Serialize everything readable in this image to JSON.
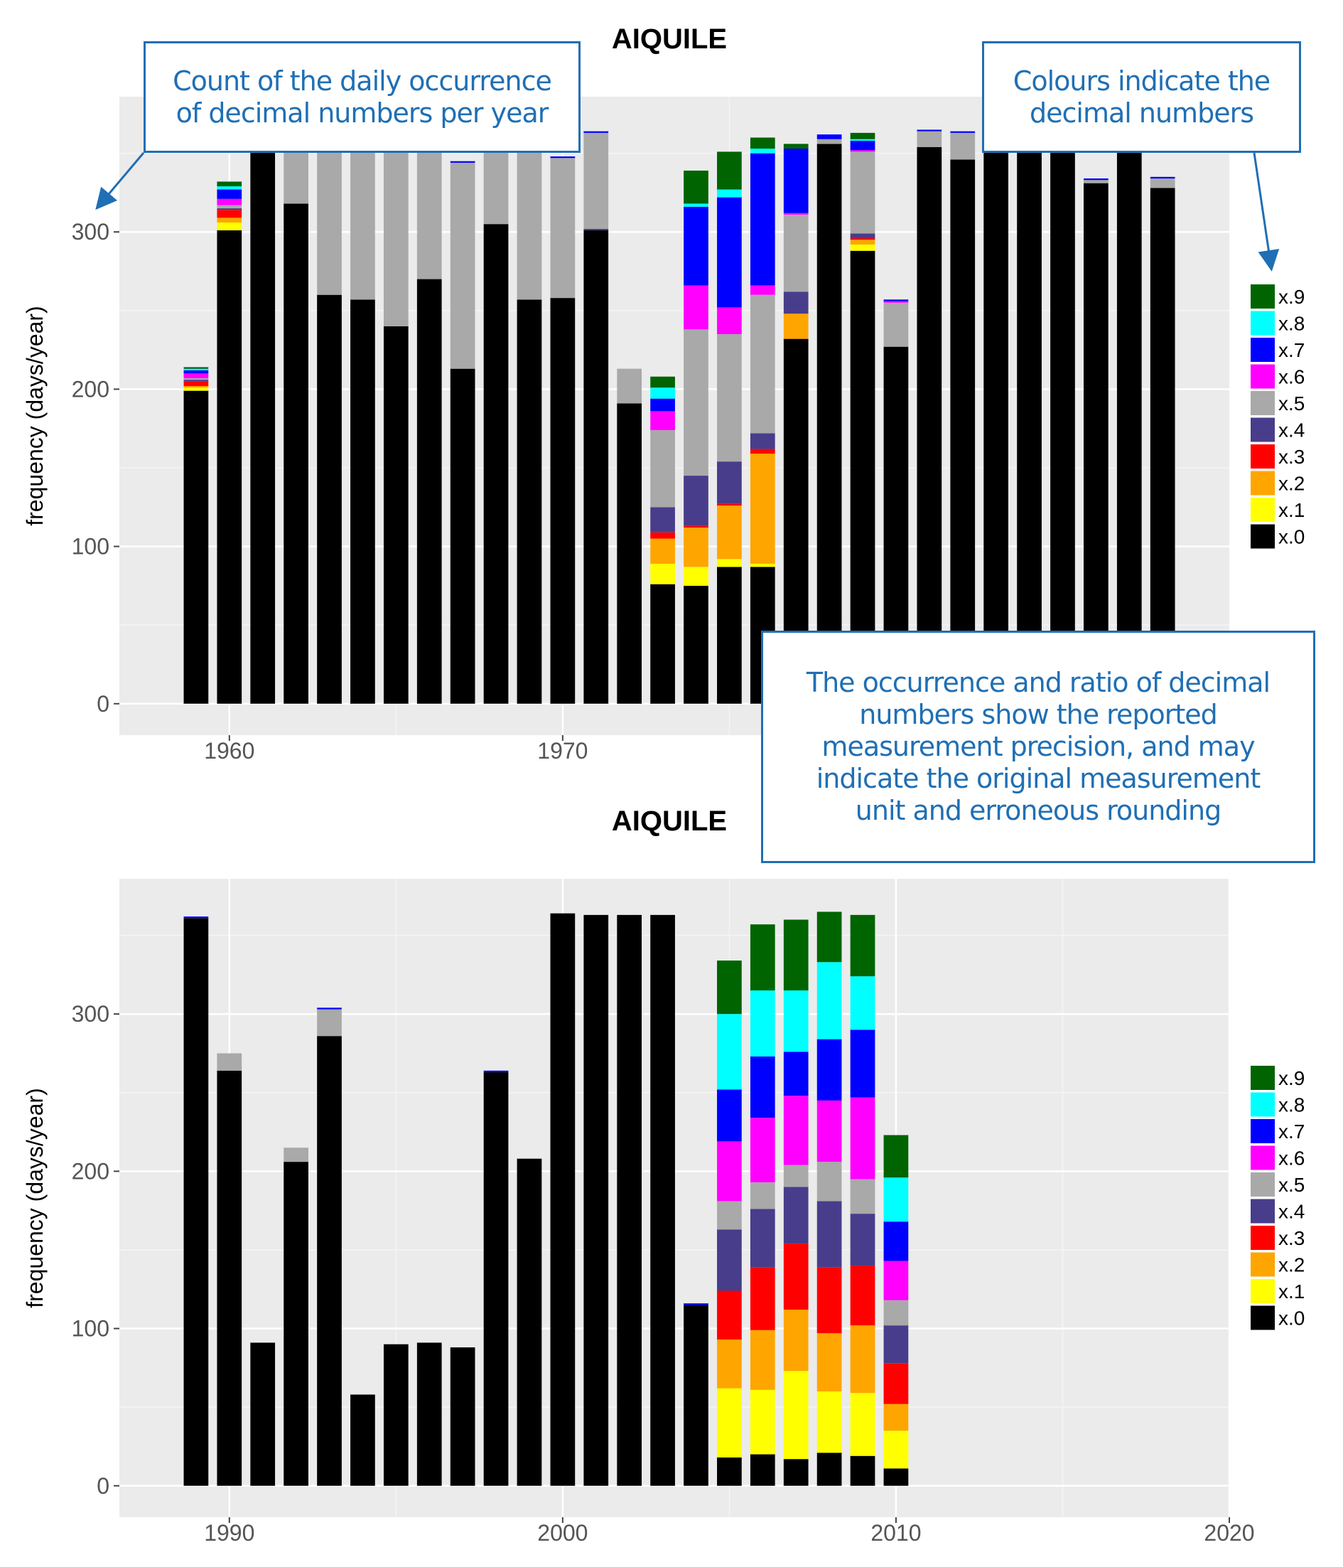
{
  "colors": {
    "x.0": "#000000",
    "x.1": "#ffff00",
    "x.2": "#ffa500",
    "x.3": "#ff0000",
    "x.4": "#483d8b",
    "x.5": "#a9a9a9",
    "x.6": "#ff00ff",
    "x.7": "#0000ff",
    "x.8": "#00ffff",
    "x.9": "#006400",
    "panel": "#ebebeb",
    "grid_major": "#ffffff",
    "callout": "#1f6fb4"
  },
  "callouts": {
    "count": "Count of the daily occurrence\nof decimal numbers per year",
    "colours": "Colours indicate the\ndecimal numbers",
    "precision": "The occurrence and ratio of decimal\nnumbers show the reported\nmeasurement precision, and may\nindicate the original measurement\nunit and erroneous rounding"
  },
  "chart_data": [
    {
      "type": "bar",
      "stacked": true,
      "title": "AIQUILE",
      "xlabel": "",
      "ylabel": "frequency (days/year)",
      "xlim": [
        1956.7,
        1990
      ],
      "ylim": [
        -20,
        386
      ],
      "xticks": [
        "1960",
        "1970"
      ],
      "yticks": [
        "0",
        "100",
        "200",
        "300"
      ],
      "legend": [
        "x.9",
        "x.8",
        "x.7",
        "x.6",
        "x.5",
        "x.4",
        "x.3",
        "x.2",
        "x.1",
        "x.0"
      ],
      "legend_position": "right",
      "grid": true,
      "series_order": [
        "x.0",
        "x.1",
        "x.2",
        "x.3",
        "x.4",
        "x.5",
        "x.6",
        "x.7",
        "x.8",
        "x.9"
      ],
      "bars": [
        {
          "year": 1959,
          "x.0": 199,
          "x.1": 2,
          "x.2": 1,
          "x.3": 3,
          "x.4": 1,
          "x.5": 1,
          "x.6": 3,
          "x.7": 2,
          "x.8": 1,
          "x.9": 1
        },
        {
          "year": 1960,
          "x.0": 301,
          "x.1": 5,
          "x.2": 3,
          "x.3": 5,
          "x.4": 1,
          "x.5": 2,
          "x.6": 4,
          "x.7": 6,
          "x.8": 2,
          "x.9": 3
        },
        {
          "year": 1961,
          "x.0": 365
        },
        {
          "year": 1962,
          "x.0": 318,
          "x.5": 47
        },
        {
          "year": 1963,
          "x.0": 260,
          "x.5": 105
        },
        {
          "year": 1964,
          "x.0": 257,
          "x.5": 108
        },
        {
          "year": 1965,
          "x.0": 240,
          "x.5": 125
        },
        {
          "year": 1966,
          "x.0": 270,
          "x.5": 95
        },
        {
          "year": 1967,
          "x.0": 213,
          "x.5": 131,
          "x.7": 1
        },
        {
          "year": 1968,
          "x.0": 305,
          "x.5": 60
        },
        {
          "year": 1969,
          "x.0": 257,
          "x.5": 108
        },
        {
          "year": 1970,
          "x.0": 258,
          "x.5": 89,
          "x.7": 1
        },
        {
          "year": 1971,
          "x.0": 301,
          "x.4": 1,
          "x.5": 61,
          "x.7": 1
        },
        {
          "year": 1972,
          "x.0": 191,
          "x.5": 22
        },
        {
          "year": 1973,
          "x.0": 76,
          "x.1": 13,
          "x.2": 16,
          "x.3": 4,
          "x.4": 16,
          "x.5": 49,
          "x.6": 12,
          "x.7": 8,
          "x.8": 7,
          "x.9": 7
        },
        {
          "year": 1974,
          "x.0": 75,
          "x.1": 12,
          "x.2": 25,
          "x.3": 1,
          "x.4": 32,
          "x.5": 93,
          "x.6": 28,
          "x.7": 50,
          "x.8": 2,
          "x.9": 21
        },
        {
          "year": 1975,
          "x.0": 87,
          "x.1": 5,
          "x.2": 34,
          "x.3": 1,
          "x.4": 27,
          "x.5": 81,
          "x.6": 17,
          "x.7": 70,
          "x.8": 5,
          "x.9": 24
        },
        {
          "year": 1976,
          "x.0": 87,
          "x.1": 2,
          "x.2": 70,
          "x.3": 3,
          "x.4": 10,
          "x.5": 88,
          "x.6": 6,
          "x.7": 84,
          "x.8": 3,
          "x.9": 7
        },
        {
          "year": 1977,
          "x.0": 232,
          "x.2": 16,
          "x.4": 14,
          "x.5": 49,
          "x.6": 1,
          "x.7": 41,
          "x.9": 3
        },
        {
          "year": 1978,
          "x.0": 356,
          "x.5": 3,
          "x.7": 3
        },
        {
          "year": 1979,
          "x.0": 288,
          "x.1": 4,
          "x.2": 3,
          "x.3": 1,
          "x.4": 3,
          "x.5": 52,
          "x.6": 1,
          "x.7": 6,
          "x.8": 1,
          "x.9": 4
        },
        {
          "year": 1980,
          "x.0": 227,
          "x.5": 28,
          "x.6": 1,
          "x.7": 1
        },
        {
          "year": 1981,
          "x.0": 354,
          "x.5": 10,
          "x.7": 1
        },
        {
          "year": 1982,
          "x.0": 346,
          "x.5": 17,
          "x.7": 1
        },
        {
          "year": 1983,
          "x.0": 365
        },
        {
          "year": 1984,
          "x.0": 364
        },
        {
          "year": 1985,
          "x.0": 365
        },
        {
          "year": 1986,
          "x.0": 331,
          "x.5": 2,
          "x.7": 1
        },
        {
          "year": 1987,
          "x.0": 365
        },
        {
          "year": 1988,
          "x.0": 328,
          "x.5": 6,
          "x.7": 1
        }
      ]
    },
    {
      "type": "bar",
      "stacked": true,
      "title": "AIQUILE",
      "xlabel": "",
      "ylabel": "frequency (days/year)",
      "xlim": [
        1986.7,
        2020.0
      ],
      "ylim": [
        -20,
        386
      ],
      "xticks": [
        "1990",
        "2000",
        "2010",
        "2020"
      ],
      "yticks": [
        "0",
        "100",
        "200",
        "300"
      ],
      "legend": [
        "x.9",
        "x.8",
        "x.7",
        "x.6",
        "x.5",
        "x.4",
        "x.3",
        "x.2",
        "x.1",
        "x.0"
      ],
      "legend_position": "right",
      "grid": true,
      "series_order": [
        "x.0",
        "x.1",
        "x.2",
        "x.3",
        "x.4",
        "x.5",
        "x.6",
        "x.7",
        "x.8",
        "x.9"
      ],
      "bars": [
        {
          "year": 1989,
          "x.0": 361,
          "x.7": 1
        },
        {
          "year": 1990,
          "x.0": 264,
          "x.5": 11
        },
        {
          "year": 1991,
          "x.0": 91
        },
        {
          "year": 1992,
          "x.0": 206,
          "x.5": 9
        },
        {
          "year": 1993,
          "x.0": 286,
          "x.5": 17,
          "x.7": 1
        },
        {
          "year": 1994,
          "x.0": 58
        },
        {
          "year": 1995,
          "x.0": 90
        },
        {
          "year": 1996,
          "x.0": 91
        },
        {
          "year": 1997,
          "x.0": 88
        },
        {
          "year": 1998,
          "x.0": 263,
          "x.7": 1
        },
        {
          "year": 1999,
          "x.0": 208
        },
        {
          "year": 2000,
          "x.0": 364
        },
        {
          "year": 2001,
          "x.0": 363
        },
        {
          "year": 2002,
          "x.0": 363
        },
        {
          "year": 2003,
          "x.0": 363
        },
        {
          "year": 2004,
          "x.0": 115,
          "x.7": 1
        },
        {
          "year": 2005,
          "x.0": 18,
          "x.1": 44,
          "x.2": 31,
          "x.3": 31,
          "x.4": 39,
          "x.5": 18,
          "x.6": 38,
          "x.7": 33,
          "x.8": 48,
          "x.9": 34
        },
        {
          "year": 2006,
          "x.0": 20,
          "x.1": 41,
          "x.2": 38,
          "x.3": 40,
          "x.4": 37,
          "x.5": 17,
          "x.6": 41,
          "x.7": 39,
          "x.8": 42,
          "x.9": 42
        },
        {
          "year": 2007,
          "x.0": 17,
          "x.1": 56,
          "x.2": 39,
          "x.3": 42,
          "x.4": 36,
          "x.5": 14,
          "x.6": 44,
          "x.7": 28,
          "x.8": 39,
          "x.9": 45
        },
        {
          "year": 2008,
          "x.0": 21,
          "x.1": 39,
          "x.2": 37,
          "x.3": 42,
          "x.4": 42,
          "x.5": 25,
          "x.6": 39,
          "x.7": 39,
          "x.8": 49,
          "x.9": 32
        },
        {
          "year": 2009,
          "x.0": 19,
          "x.1": 40,
          "x.2": 43,
          "x.3": 38,
          "x.4": 33,
          "x.5": 22,
          "x.6": 52,
          "x.7": 43,
          "x.8": 34,
          "x.9": 39
        },
        {
          "year": 2010,
          "x.0": 11,
          "x.1": 24,
          "x.2": 17,
          "x.3": 26,
          "x.4": 24,
          "x.5": 16,
          "x.6": 25,
          "x.7": 25,
          "x.8": 28,
          "x.9": 27
        }
      ]
    }
  ]
}
